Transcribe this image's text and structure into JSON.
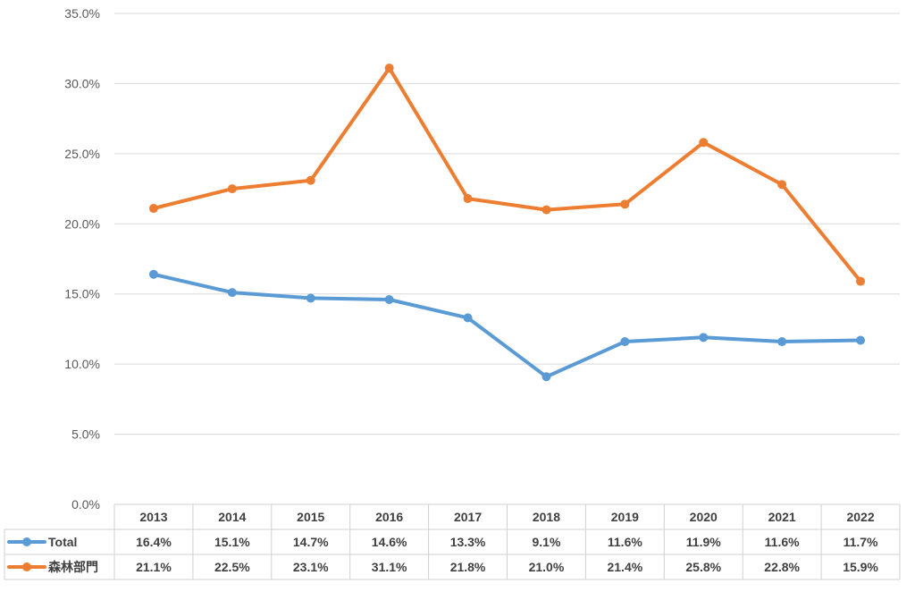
{
  "chart_data": {
    "type": "line",
    "title": "",
    "xlabel": "",
    "ylabel": "",
    "ylim": [
      0,
      35
    ],
    "y_ticks": [
      "0.0%",
      "5.0%",
      "10.0%",
      "15.0%",
      "20.0%",
      "25.0%",
      "30.0%",
      "35.0%"
    ],
    "y_tick_values": [
      0,
      5,
      10,
      15,
      20,
      25,
      30,
      35
    ],
    "grid": true,
    "legend": "data-table",
    "categories": [
      "2013",
      "2014",
      "2015",
      "2016",
      "2017",
      "2018",
      "2019",
      "2020",
      "2021",
      "2022"
    ],
    "series": [
      {
        "name": "Total",
        "color": "#5b9bd5",
        "values": [
          16.4,
          15.1,
          14.7,
          14.6,
          13.3,
          9.1,
          11.6,
          11.9,
          11.6,
          11.7
        ],
        "labels": [
          "16.4%",
          "15.1%",
          "14.7%",
          "14.6%",
          "13.3%",
          "9.1%",
          "11.6%",
          "11.9%",
          "11.6%",
          "11.7%"
        ]
      },
      {
        "name": "森林部門",
        "color": "#ed7d31",
        "values": [
          21.1,
          22.5,
          23.1,
          31.1,
          21.8,
          21.0,
          21.4,
          25.8,
          22.8,
          15.9
        ],
        "labels": [
          "21.1%",
          "22.5%",
          "23.1%",
          "31.1%",
          "21.8%",
          "21.0%",
          "21.4%",
          "25.8%",
          "22.8%",
          "15.9%"
        ]
      }
    ]
  }
}
